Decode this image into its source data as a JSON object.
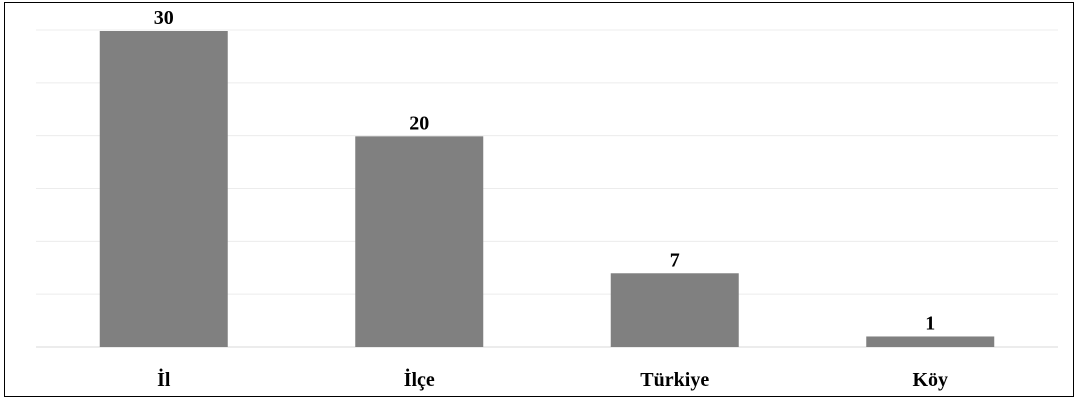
{
  "chart_data": {
    "type": "bar",
    "categories": [
      "İl",
      "İlçe",
      "Türkiye",
      "Köy"
    ],
    "values": [
      30,
      20,
      7,
      1
    ],
    "title": "",
    "xlabel": "",
    "ylabel": "",
    "ylim": [
      0,
      30
    ],
    "grid": true,
    "legend": "none",
    "data_labels": true,
    "colors": {
      "bar": "#808080",
      "grid": "#ececec",
      "baseline": "#d9d9d9",
      "text": "#000000",
      "frame": "#000000"
    }
  }
}
